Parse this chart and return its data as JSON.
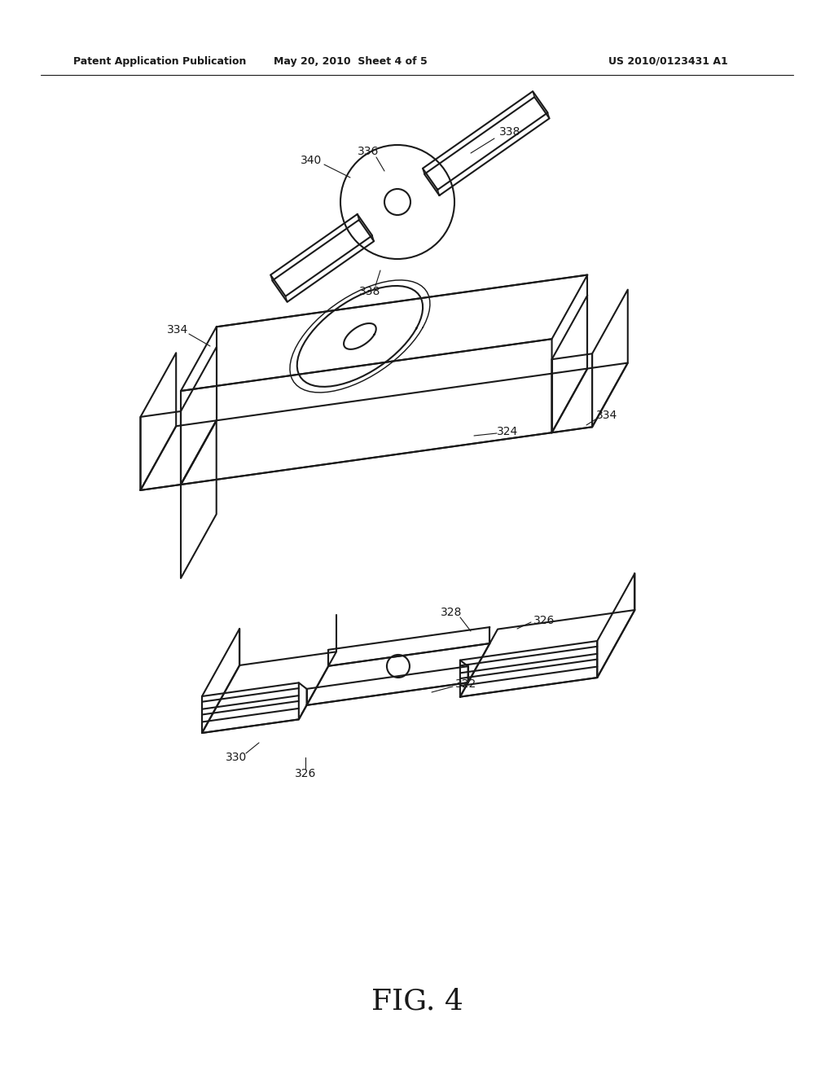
{
  "background_color": "#ffffff",
  "header_left": "Patent Application Publication",
  "header_center": "May 20, 2010  Sheet 4 of 5",
  "header_right": "US 2010/0123431 A1",
  "figure_label": "FIG. 4",
  "line_color": "#1a1a1a",
  "line_width": 1.5
}
